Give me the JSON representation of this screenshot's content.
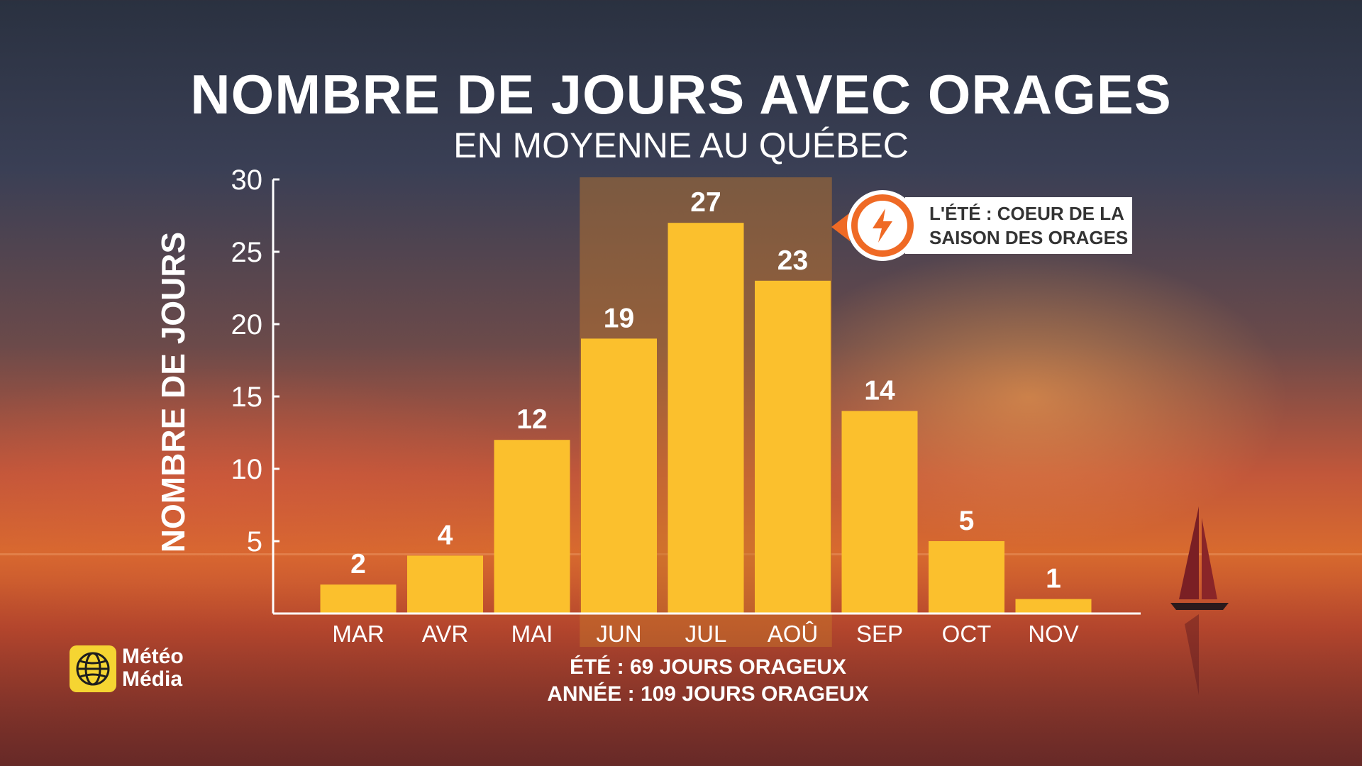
{
  "title": "NOMBRE DE JOURS AVEC ORAGES",
  "subtitle": "EN MOYENNE AU QUÉBEC",
  "chart_data": {
    "type": "bar",
    "title": "NOMBRE DE JOURS AVEC ORAGES",
    "subtitle": "EN MOYENNE AU QUÉBEC",
    "categories": [
      "MAR",
      "AVR",
      "MAI",
      "JUN",
      "JUL",
      "AOÛ",
      "SEP",
      "OCT",
      "NOV"
    ],
    "values": [
      2,
      4,
      12,
      19,
      27,
      23,
      14,
      5,
      1
    ],
    "xlabel": "",
    "ylabel": "NOMBRE DE JOURS",
    "ylim": [
      0,
      30
    ],
    "yticks": [
      5,
      10,
      15,
      20,
      25,
      30
    ],
    "grid": false,
    "bar_color": "#fbc02d",
    "highlight_categories": [
      "JUN",
      "JUL",
      "AOÛ"
    ],
    "highlight_color": "#c77a2a"
  },
  "callout": {
    "line1": "L'ÉTÉ : COEUR DE LA",
    "line2": "SAISON DES ORAGES",
    "icon": "lightning-bolt-icon",
    "accent": "#ef6a25"
  },
  "footer": {
    "line1": "ÉTÉ : 69 JOURS ORAGEUX",
    "line2": "ANNÉE : 109 JOURS ORAGEUX"
  },
  "logo": {
    "line1": "Météo",
    "line2": "Média",
    "color": "#f5d532"
  }
}
